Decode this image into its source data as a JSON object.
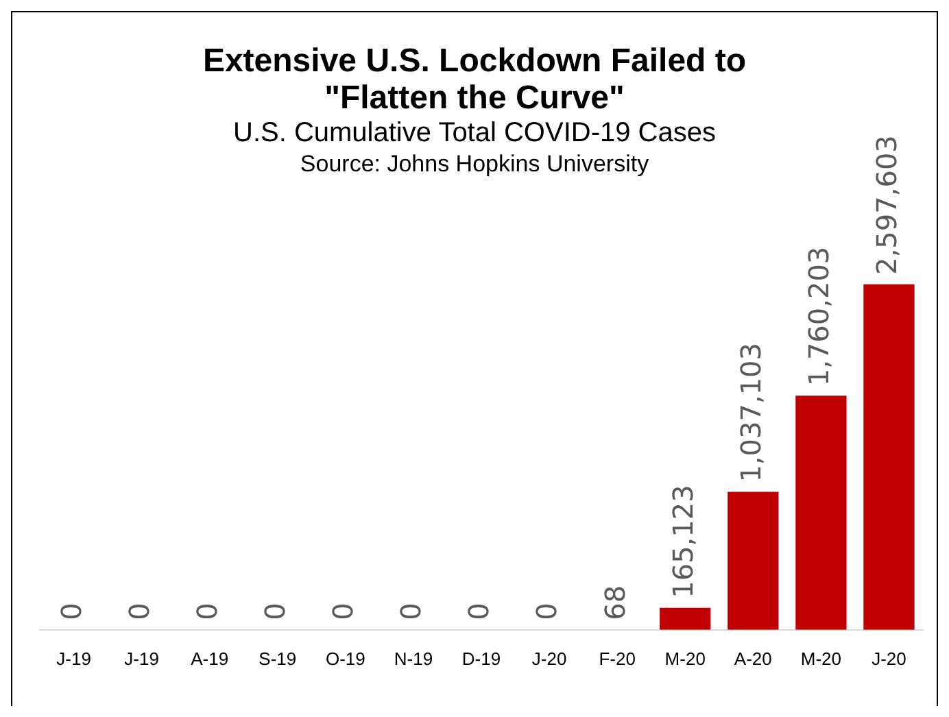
{
  "chart_data": {
    "type": "bar",
    "title": "Extensive U.S. Lockdown Failed to \"Flatten the Curve\"",
    "subtitle": "U.S. Cumulative Total COVID-19 Cases",
    "annotations": [
      "Source: Johns Hopkins University"
    ],
    "categories": [
      "J-19",
      "J-19",
      "A-19",
      "S-19",
      "O-19",
      "N-19",
      "D-19",
      "J-20",
      "F-20",
      "M-20",
      "A-20",
      "M-20",
      "J-20"
    ],
    "values": [
      0,
      0,
      0,
      0,
      0,
      0,
      0,
      0,
      68,
      165123,
      1037103,
      1760203,
      2597603
    ],
    "value_labels": [
      "0",
      "0",
      "0",
      "0",
      "0",
      "0",
      "0",
      "0",
      "68",
      "165,123",
      "1,037,103",
      "1,760,203",
      "2,597,603"
    ],
    "color": "#c00000",
    "tick_labels": "x"
  }
}
